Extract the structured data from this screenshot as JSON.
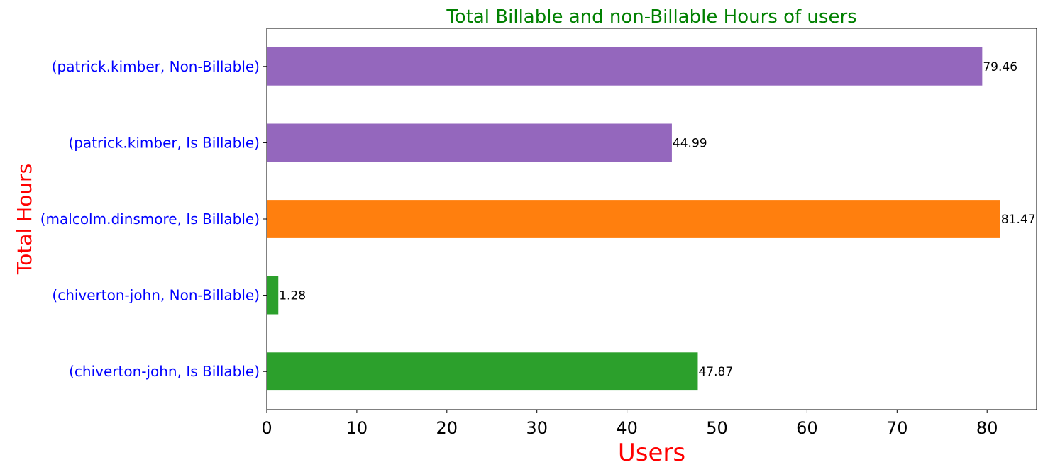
{
  "chart_data": {
    "type": "bar",
    "orientation": "horizontal",
    "title": "Total Billable and non-Billable Hours of users",
    "xlabel": "Users",
    "ylabel": "Total Hours",
    "categories": [
      "(chiverton-john, Is Billable)",
      "(chiverton-john, Non-Billable)",
      "(malcolm.dinsmore, Is Billable)",
      "(patrick.kimber, Is Billable)",
      "(patrick.kimber, Non-Billable)"
    ],
    "values": [
      47.87,
      1.28,
      81.47,
      44.99,
      79.46
    ],
    "value_labels": [
      "47.87",
      "1.28",
      "81.47",
      "44.99",
      "79.46"
    ],
    "bar_colors": [
      "#2ca02c",
      "#2ca02c",
      "#ff7f0e",
      "#9467bd",
      "#9467bd"
    ],
    "xlim": [
      0,
      85.5
    ],
    "xticks": [
      0,
      10,
      20,
      30,
      40,
      50,
      60,
      70,
      80
    ],
    "xtick_labels": [
      "0",
      "10",
      "20",
      "30",
      "40",
      "50",
      "60",
      "70",
      "80"
    ],
    "grid": false,
    "legend": "none",
    "colors": {
      "title": "#008000",
      "axis_labels": "#ff0000",
      "category_labels": "#0000ff"
    }
  }
}
